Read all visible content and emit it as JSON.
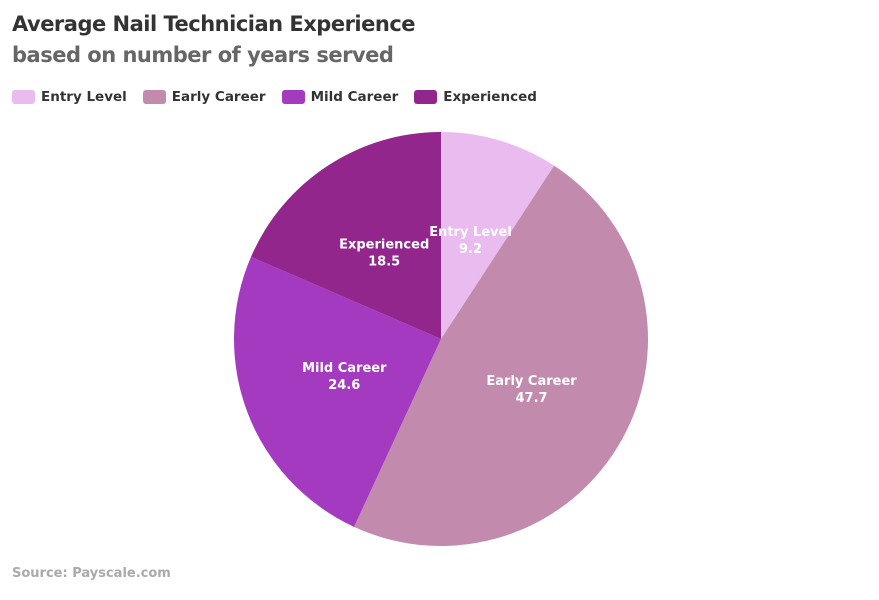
{
  "chart_data": {
    "type": "pie",
    "title": "Average Nail Technician Experience",
    "subtitle": "based on number of years served",
    "legend_position": "top-left",
    "categories": [
      "Entry Level",
      "Early Career",
      "Mild Career",
      "Experienced"
    ],
    "values": [
      9.2,
      47.7,
      24.6,
      18.5
    ],
    "value_labels": [
      "9.2",
      "47.7",
      "24.6",
      "18.5"
    ],
    "colors": [
      "#e9bbee",
      "#c28bae",
      "#a33abf",
      "#93268c"
    ],
    "source": "Source: Payscale.com"
  }
}
